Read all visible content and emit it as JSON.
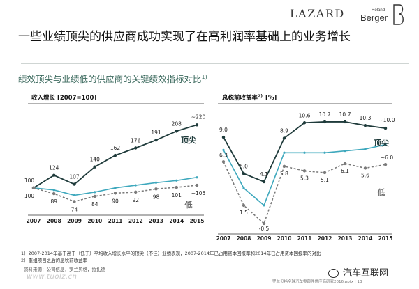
{
  "header": {
    "title": "一些业绩顶尖的供应商成功实现了在高利润率基础上的业务增长",
    "subtitle": "绩效顶尖与业绩低的供应商的关键绩效指标对比",
    "subtitle_sup": "1)",
    "logo_lazard": "LAZARD",
    "logo_roland": "Roland",
    "logo_berger": "Berger"
  },
  "chart_data": [
    {
      "type": "line",
      "title": "收入增长 [2007=100]",
      "categories": [
        "2007",
        "2008",
        "2009",
        "2010",
        "2011",
        "2012",
        "2013",
        "2014",
        "2015"
      ],
      "ylim": [
        60,
        235
      ],
      "series": [
        {
          "name": "顶尖",
          "values": [
            100,
            124,
            107,
            140,
            162,
            176,
            191,
            208,
            220
          ],
          "labels": [
            "100",
            "124",
            "107",
            "140",
            "162",
            "176",
            "191",
            "208",
            "~220"
          ],
          "color": "#1f3b3b",
          "style": "solid-markers"
        },
        {
          "name": "",
          "values": [
            100,
            null,
            null,
            null,
            null,
            null,
            null,
            null,
            null
          ],
          "color": "#3ea8bd",
          "style": "solid"
        },
        {
          "name": "低",
          "values": [
            100,
            89,
            74,
            84,
            90,
            92,
            98,
            101,
            105
          ],
          "labels": [
            "100",
            "89",
            "74",
            "84",
            "90",
            "92",
            "98",
            "101",
            "~105"
          ],
          "color": "#7a7a7a",
          "style": "dashed-markers"
        }
      ],
      "mid_line": [
        100,
        96,
        86,
        92,
        100,
        105,
        110,
        114,
        120
      ]
    },
    {
      "type": "line",
      "title": "息税前收益率",
      "title_sup": "2)",
      "title_unit": "[%]",
      "categories": [
        "2007",
        "2008",
        "2009",
        "2010",
        "2011",
        "2012",
        "2013",
        "2014",
        "2015"
      ],
      "ylim": [
        -1.5,
        12
      ],
      "series": [
        {
          "name": "顶尖",
          "values": [
            9.0,
            5.0,
            4.1,
            8.9,
            10.6,
            10.7,
            10.7,
            10.3,
            10.0
          ],
          "labels": [
            "9.0",
            "5.0",
            "4.1",
            "8.9",
            "10.6",
            "10.7",
            "10.7",
            "10.3",
            "~10.0"
          ],
          "color": "#1f3b3b",
          "style": "solid-markers"
        },
        {
          "name": "低",
          "values": [
            6.3,
            1.5,
            -0.5,
            5.8,
            5.3,
            5.1,
            6.1,
            5.6,
            6.0
          ],
          "labels": [
            "6.3",
            "1.5",
            "-0.5",
            "5.8",
            "5.3",
            "5.1",
            "6.1",
            "5.6",
            "~6.0"
          ],
          "color": "#7a7a7a",
          "style": "dashed-markers"
        }
      ],
      "mid_line": [
        7.6,
        3.4,
        1.5,
        7.3,
        7.3,
        7.3,
        7.5,
        7.7,
        8.2
      ]
    }
  ],
  "footnotes": [
    "1）2007-2014年基于高于（低于）平均收入增长水平的顶尖（不佳）业绩表现，2007-2014年已占用资本回报率和2014年已占用资本回报率的对比",
    "2）重组项目之后的息税前收益率"
  ],
  "source": "资料来源：公司信息，罗兰贝格，拉扎德",
  "watermark": "www.tuolz.cn",
  "page_note": "罗兰贝格全球汽车零部件供应商研究2016.pptx  |  13",
  "wechat": "汽车互联网"
}
